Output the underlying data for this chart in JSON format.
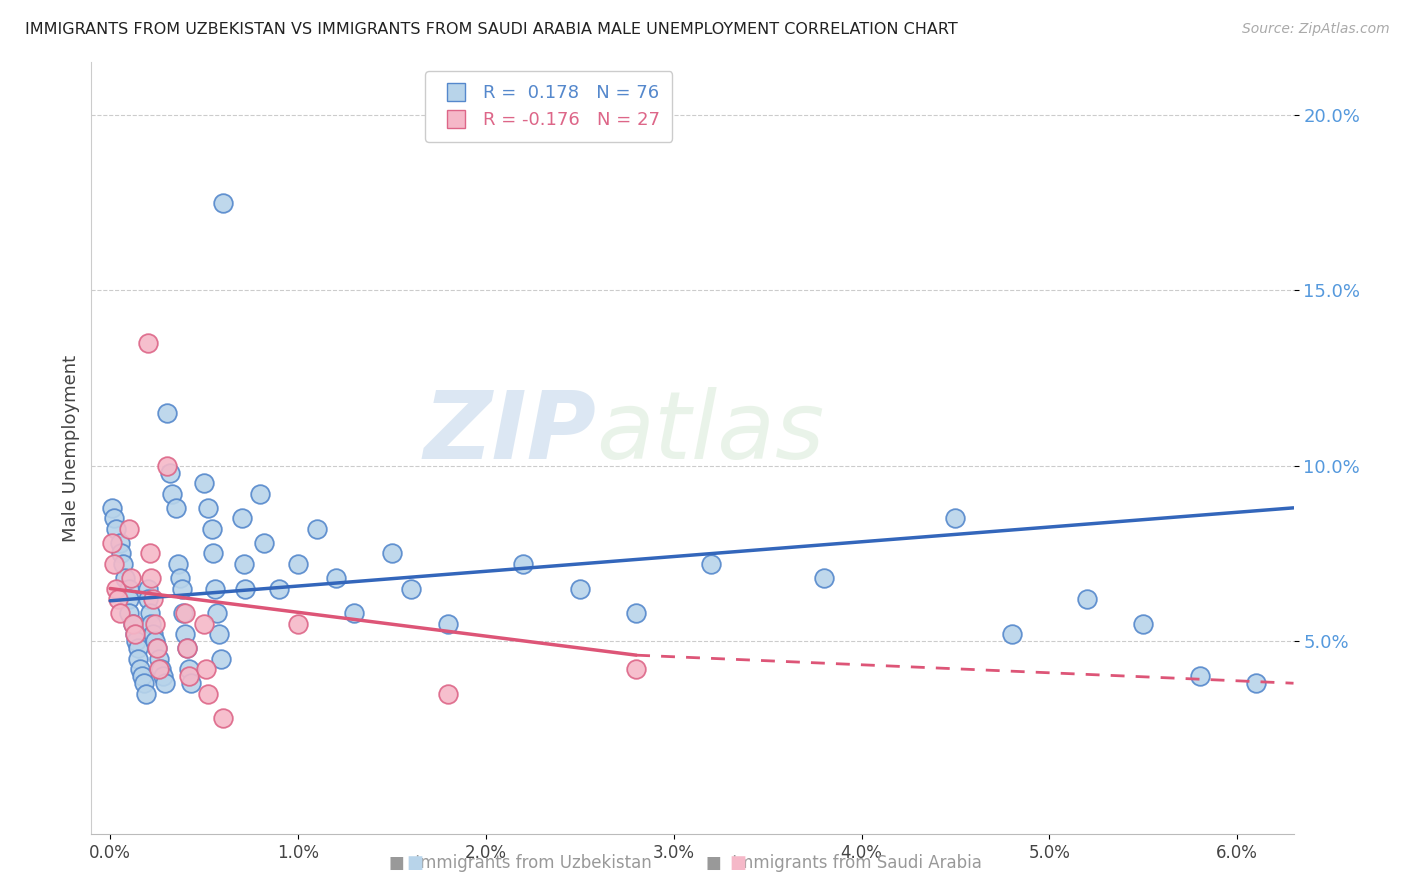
{
  "title": "IMMIGRANTS FROM UZBEKISTAN VS IMMIGRANTS FROM SAUDI ARABIA MALE UNEMPLOYMENT CORRELATION CHART",
  "source": "Source: ZipAtlas.com",
  "ylabel": "Male Unemployment",
  "y_ticks": [
    0.05,
    0.1,
    0.15,
    0.2
  ],
  "y_tick_labels": [
    "5.0%",
    "10.0%",
    "15.0%",
    "20.0%"
  ],
  "x_ticks": [
    0.0,
    0.01,
    0.02,
    0.03,
    0.04,
    0.05,
    0.06
  ],
  "x_tick_labels": [
    "0.0%",
    "1.0%",
    "2.0%",
    "3.0%",
    "4.0%",
    "5.0%",
    "6.0%"
  ],
  "x_lim": [
    -0.001,
    0.063
  ],
  "y_lim": [
    -0.005,
    0.215
  ],
  "color_uzbekistan_fill": "#b8d4ea",
  "color_uzbekistan_edge": "#5588cc",
  "color_saudi_fill": "#f5b8c8",
  "color_saudi_edge": "#dd6688",
  "line_color_uzbekistan": "#3366bb",
  "line_color_saudi": "#dd5577",
  "ytick_color": "#5599dd",
  "watermark_zip": "ZIP",
  "watermark_atlas": "atlas",
  "uzbekistan_points": [
    [
      0.0001,
      0.088
    ],
    [
      0.0002,
      0.085
    ],
    [
      0.0003,
      0.082
    ],
    [
      0.0005,
      0.078
    ],
    [
      0.0006,
      0.075
    ],
    [
      0.0007,
      0.072
    ],
    [
      0.0008,
      0.068
    ],
    [
      0.001,
      0.065
    ],
    [
      0.001,
      0.062
    ],
    [
      0.001,
      0.058
    ],
    [
      0.0012,
      0.055
    ],
    [
      0.0013,
      0.052
    ],
    [
      0.0014,
      0.05
    ],
    [
      0.0015,
      0.048
    ],
    [
      0.0015,
      0.045
    ],
    [
      0.0016,
      0.042
    ],
    [
      0.0017,
      0.04
    ],
    [
      0.0018,
      0.038
    ],
    [
      0.0019,
      0.035
    ],
    [
      0.002,
      0.065
    ],
    [
      0.002,
      0.062
    ],
    [
      0.0021,
      0.058
    ],
    [
      0.0022,
      0.055
    ],
    [
      0.0023,
      0.052
    ],
    [
      0.0024,
      0.05
    ],
    [
      0.0025,
      0.048
    ],
    [
      0.0026,
      0.045
    ],
    [
      0.0027,
      0.042
    ],
    [
      0.0028,
      0.04
    ],
    [
      0.0029,
      0.038
    ],
    [
      0.003,
      0.115
    ],
    [
      0.0032,
      0.098
    ],
    [
      0.0033,
      0.092
    ],
    [
      0.0035,
      0.088
    ],
    [
      0.0036,
      0.072
    ],
    [
      0.0037,
      0.068
    ],
    [
      0.0038,
      0.065
    ],
    [
      0.0039,
      0.058
    ],
    [
      0.004,
      0.052
    ],
    [
      0.0041,
      0.048
    ],
    [
      0.0042,
      0.042
    ],
    [
      0.0043,
      0.038
    ],
    [
      0.005,
      0.095
    ],
    [
      0.0052,
      0.088
    ],
    [
      0.0054,
      0.082
    ],
    [
      0.0055,
      0.075
    ],
    [
      0.0056,
      0.065
    ],
    [
      0.0057,
      0.058
    ],
    [
      0.0058,
      0.052
    ],
    [
      0.0059,
      0.045
    ],
    [
      0.006,
      0.175
    ],
    [
      0.007,
      0.085
    ],
    [
      0.0071,
      0.072
    ],
    [
      0.0072,
      0.065
    ],
    [
      0.008,
      0.092
    ],
    [
      0.0082,
      0.078
    ],
    [
      0.009,
      0.065
    ],
    [
      0.01,
      0.072
    ],
    [
      0.011,
      0.082
    ],
    [
      0.012,
      0.068
    ],
    [
      0.013,
      0.058
    ],
    [
      0.015,
      0.075
    ],
    [
      0.016,
      0.065
    ],
    [
      0.018,
      0.055
    ],
    [
      0.022,
      0.072
    ],
    [
      0.025,
      0.065
    ],
    [
      0.028,
      0.058
    ],
    [
      0.032,
      0.072
    ],
    [
      0.038,
      0.068
    ],
    [
      0.045,
      0.085
    ],
    [
      0.048,
      0.052
    ],
    [
      0.052,
      0.062
    ],
    [
      0.055,
      0.055
    ],
    [
      0.058,
      0.04
    ],
    [
      0.061,
      0.038
    ]
  ],
  "saudi_points": [
    [
      0.0001,
      0.078
    ],
    [
      0.0002,
      0.072
    ],
    [
      0.0003,
      0.065
    ],
    [
      0.0004,
      0.062
    ],
    [
      0.0005,
      0.058
    ],
    [
      0.001,
      0.082
    ],
    [
      0.0011,
      0.068
    ],
    [
      0.0012,
      0.055
    ],
    [
      0.0013,
      0.052
    ],
    [
      0.002,
      0.135
    ],
    [
      0.0021,
      0.075
    ],
    [
      0.0022,
      0.068
    ],
    [
      0.0023,
      0.062
    ],
    [
      0.0024,
      0.055
    ],
    [
      0.0025,
      0.048
    ],
    [
      0.0026,
      0.042
    ],
    [
      0.003,
      0.1
    ],
    [
      0.004,
      0.058
    ],
    [
      0.0041,
      0.048
    ],
    [
      0.0042,
      0.04
    ],
    [
      0.005,
      0.055
    ],
    [
      0.0051,
      0.042
    ],
    [
      0.0052,
      0.035
    ],
    [
      0.006,
      0.028
    ],
    [
      0.01,
      0.055
    ],
    [
      0.018,
      0.035
    ],
    [
      0.028,
      0.042
    ]
  ],
  "uzb_line_x": [
    0.0,
    0.063
  ],
  "uzb_line_y": [
    0.0615,
    0.088
  ],
  "sau_line_x0": 0.0,
  "sau_line_y0": 0.065,
  "sau_line_x1": 0.028,
  "sau_line_y1": 0.046,
  "sau_line_x2": 0.063,
  "sau_line_y2": 0.038
}
